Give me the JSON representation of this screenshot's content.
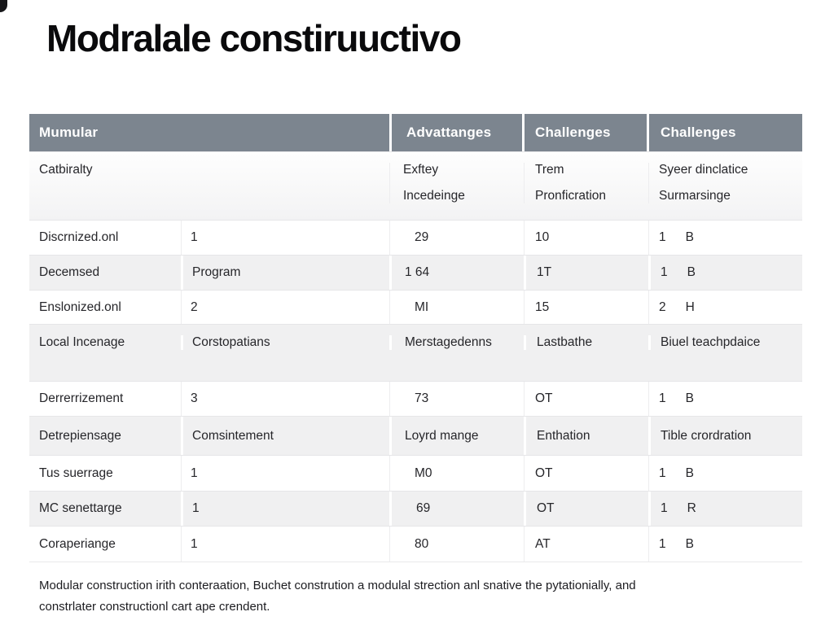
{
  "title": "Modralale constiruuctivo",
  "table": {
    "columns": [
      "Mumular",
      "Advattanges",
      "Challenges",
      "Challenges"
    ],
    "category_row": {
      "label": "Catbiralty",
      "advantages": [
        "Exftey",
        "Incedeinge"
      ],
      "challenges_a": [
        "Trem",
        "Pronficration"
      ],
      "challenges_b": [
        "Syeer dinclatice",
        "Surmarsinge"
      ]
    },
    "rows": [
      {
        "c1": "Discrnized.onl",
        "c2": "1",
        "c3": "29",
        "c4": "10",
        "c5": "1",
        "c6": "B"
      },
      {
        "c1": "Decemsed",
        "c2": "Program",
        "c3": "1 64",
        "c4": "1T",
        "c5": "1",
        "c6": "B"
      },
      {
        "c1": "Enslonized.onl",
        "c2": "2",
        "c3": "MI",
        "c4": "15",
        "c5": "2",
        "c6": "H"
      },
      {
        "c1": "Local Incenage",
        "c2": "Corstopatians",
        "c3": "Merstagedenns",
        "c4": "Lastbathe",
        "c5": "Biuel teachpdaice",
        "c6": ""
      },
      {
        "c1": "Derrerrizement",
        "c2": "3",
        "c3": "73",
        "c4": "OT",
        "c5": "1",
        "c6": "B"
      },
      {
        "c1": "Detrepiensage",
        "c2": "Comsintement",
        "c3": "Loyrd mange",
        "c4": "Enthation",
        "c5": "Tible crordration",
        "c6": ""
      },
      {
        "c1": "Tus suerrage",
        "c2": "1",
        "c3": "M0",
        "c4": "OT",
        "c5": "1",
        "c6": "B"
      },
      {
        "c1": "MC senettarge",
        "c2": "1",
        "c3": "69",
        "c4": "OT",
        "c5": "1",
        "c6": "R"
      },
      {
        "c1": "Coraperiange",
        "c2": "1",
        "c3": "80",
        "c4": "AT",
        "c5": "1",
        "c6": "B"
      }
    ]
  },
  "footnote": {
    "line1": "Modular construction irith conteraation, Buchet constrution a modulal strection anl snative the pytationially, and",
    "line2": "constrlater constructionl cart ape crendent."
  },
  "colors": {
    "header_bg": "#7c858f",
    "header_text": "#ffffff",
    "alt_row_bg": "#f0f0f1",
    "body_text": "#26262a"
  }
}
